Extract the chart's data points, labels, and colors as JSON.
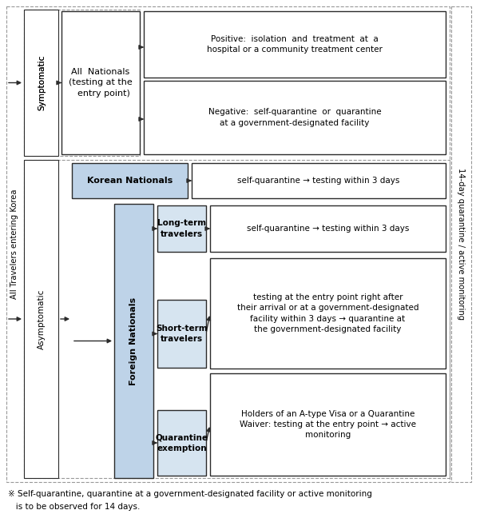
{
  "bg_color": "#ffffff",
  "light_blue": "#bed3e8",
  "lighter_blue": "#d6e4f0",
  "box_all_nationals": "All  Nationals\n(testing at the\n  entry point)",
  "box_korean": "Korean Nationals",
  "box_foreign": "Foreign Nationals",
  "box_longterm": "Long-term\ntravelers",
  "box_shortterm": "Short-term\ntravelers",
  "box_quarantine_ex": "Quarantine\nexemption",
  "symptomatic_label": "Symptomatic",
  "asymptomatic_label": "Asymptomatic",
  "left_label": "All Travelers entering Korea",
  "right_label": "14-day quarantine / active monitoring",
  "result_positive": "Positive:  isolation  and  treatment  at  a\nhospital or a community treatment center",
  "result_negative": "Negative:  self-quarantine  or  quarantine\nat a government-designated facility",
  "result_korean": "self-quarantine → testing within 3 days",
  "result_longterm": "self-quarantine → testing within 3 days",
  "result_shortterm": "testing at the entry point right after\ntheir arrival or at a government-designated\nfacility within 3 days → quarantine at\nthe government-designated facility",
  "result_exemption": "Holders of an A-type Visa or a Quarantine\nWaiver: testing at the entry point → active\nmonitoring",
  "footnote_line1": "※ Self-quarantine, quarantine at a government-designated facility or active monitoring",
  "footnote_line2": "   is to be observed for 14 days."
}
